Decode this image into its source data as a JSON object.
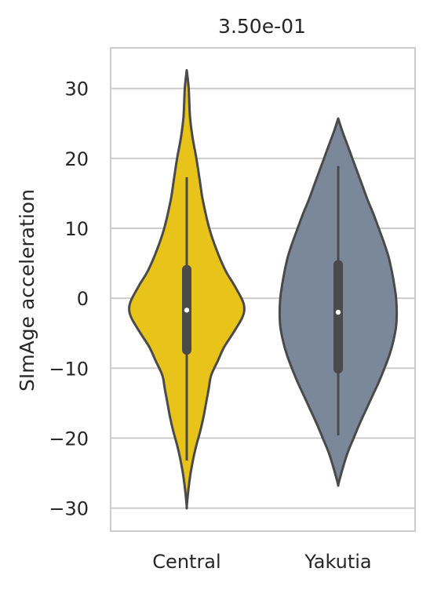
{
  "chart_data": {
    "type": "violin",
    "title": "3.50e-01",
    "ylabel": "SImAge acceleration",
    "xlabel": "",
    "categories": [
      "Central",
      "Yakutia"
    ],
    "ylim": [
      -33.3,
      35.8
    ],
    "yticks": [
      30,
      20,
      10,
      0,
      -10,
      -20,
      -30
    ],
    "ytick_labels": [
      "30",
      "20",
      "10",
      "0",
      "−10",
      "−20",
      "−30"
    ],
    "grid": "horizontal",
    "colors": {
      "Central": "#e8c31a",
      "Yakutia": "#7a8899",
      "outline": "#4a4a4a"
    },
    "violins": [
      {
        "category": "Central",
        "min": -29.7,
        "max": 32.6,
        "whisker_low": -23.2,
        "whisker_high": 17.3,
        "q1": -7.4,
        "median": -1.7,
        "q3": 4.1,
        "density_halfwidth": [
          [
            32.6,
            0.0
          ],
          [
            30,
            0.03
          ],
          [
            26,
            0.05
          ],
          [
            23,
            0.09
          ],
          [
            20,
            0.15
          ],
          [
            17,
            0.2
          ],
          [
            14,
            0.25
          ],
          [
            10,
            0.35
          ],
          [
            7,
            0.46
          ],
          [
            4,
            0.6
          ],
          [
            2,
            0.73
          ],
          [
            0,
            0.85
          ],
          [
            -1,
            0.89
          ],
          [
            -2,
            0.89
          ],
          [
            -3,
            0.85
          ],
          [
            -5,
            0.72
          ],
          [
            -7,
            0.58
          ],
          [
            -9,
            0.48
          ],
          [
            -11,
            0.38
          ],
          [
            -13,
            0.34
          ],
          [
            -15,
            0.3
          ],
          [
            -17,
            0.26
          ],
          [
            -19,
            0.21
          ],
          [
            -21,
            0.15
          ],
          [
            -23,
            0.1
          ],
          [
            -25,
            0.06
          ],
          [
            -27,
            0.03
          ],
          [
            -29.7,
            0.0
          ]
        ]
      },
      {
        "category": "Yakutia",
        "min": -26.7,
        "max": 25.7,
        "whisker_low": -19.6,
        "whisker_high": 18.9,
        "q1": -10.1,
        "median": -2.0,
        "q3": 4.8,
        "density_halfwidth": [
          [
            25.7,
            0.0
          ],
          [
            24,
            0.06
          ],
          [
            22,
            0.14
          ],
          [
            20,
            0.22
          ],
          [
            18,
            0.3
          ],
          [
            16,
            0.38
          ],
          [
            14,
            0.46
          ],
          [
            12,
            0.55
          ],
          [
            10,
            0.63
          ],
          [
            8,
            0.71
          ],
          [
            6,
            0.78
          ],
          [
            4,
            0.83
          ],
          [
            2,
            0.87
          ],
          [
            0,
            0.9
          ],
          [
            -2,
            0.91
          ],
          [
            -4,
            0.9
          ],
          [
            -6,
            0.86
          ],
          [
            -8,
            0.8
          ],
          [
            -10,
            0.72
          ],
          [
            -12,
            0.63
          ],
          [
            -14,
            0.53
          ],
          [
            -16,
            0.43
          ],
          [
            -18,
            0.33
          ],
          [
            -20,
            0.24
          ],
          [
            -22,
            0.15
          ],
          [
            -24,
            0.08
          ],
          [
            -26,
            0.02
          ],
          [
            -26.7,
            0.0
          ]
        ]
      }
    ]
  }
}
